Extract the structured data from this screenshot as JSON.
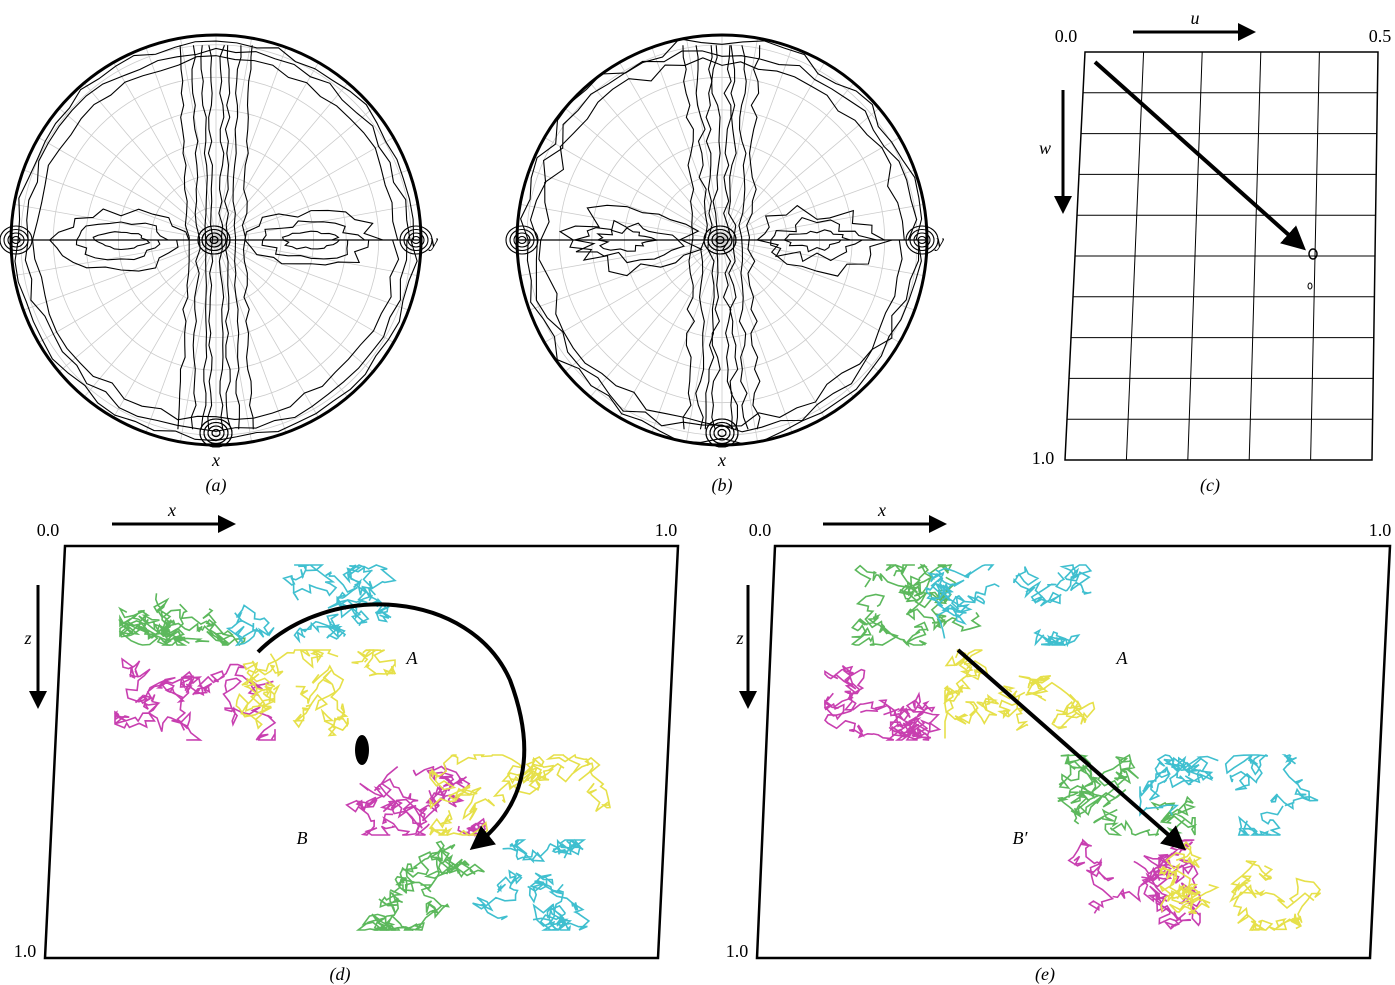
{
  "panels": [
    {
      "label": "(a)",
      "x_label": "x",
      "y_label": "y"
    },
    {
      "label": "(b)",
      "x_label": "x",
      "y_label": "y"
    },
    {
      "label": "(c)",
      "u_label": "u",
      "w_label": "w",
      "origin": "0.0",
      "u_end": "0.5",
      "w_end": "1.0"
    },
    {
      "label": "(d)",
      "x_label": "x",
      "z_label": "z",
      "origin": "0.0",
      "x_end": "1.0",
      "z_end": "1.0",
      "molecules": [
        "A",
        "B"
      ]
    },
    {
      "label": "(e)",
      "x_label": "x",
      "z_label": "z",
      "origin": "0.0",
      "x_end": "1.0",
      "z_end": "1.0",
      "molecules": [
        "A",
        "B′"
      ]
    }
  ]
}
